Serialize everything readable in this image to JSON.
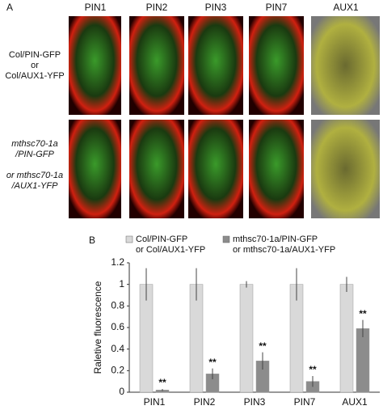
{
  "panel_a": {
    "label": "A",
    "columns": [
      "PIN1",
      "PIN2",
      "PIN3",
      "PIN7",
      "AUX1"
    ],
    "rows": [
      "Col/PIN-GFP\nor\nCol/AUX1-YFP",
      "mthsc70-1a\n/PIN-GFP\n\nor mthsc70-1a\n/AUX1-YFP"
    ]
  },
  "chart_data": {
    "type": "bar",
    "panel_label": "B",
    "ylabel": "Raletive fluorescence",
    "categories": [
      "PIN1",
      "PIN2",
      "PIN3",
      "PIN7",
      "AUX1"
    ],
    "series": [
      {
        "name": "Col/PIN-GFP\nor Col/AUX1-YFP",
        "color": "#d9d9d9",
        "values": [
          1,
          1,
          1,
          1,
          1
        ],
        "errors": [
          0.15,
          0.15,
          0.03,
          0.15,
          0.07
        ]
      },
      {
        "name": "mthsc70-1a/PIN-GFP\nor mthsc70-1a/AUX1-YFP",
        "color": "#8c8c8c",
        "values": [
          0.02,
          0.17,
          0.29,
          0.1,
          0.59
        ],
        "errors": [
          0.01,
          0.05,
          0.08,
          0.05,
          0.08
        ],
        "annotations": [
          "**",
          "**",
          "**",
          "**",
          "**"
        ]
      }
    ],
    "ylim": [
      0,
      1.2
    ],
    "yticks": [
      0,
      0.2,
      0.4,
      0.6,
      0.8,
      1,
      1.2
    ]
  }
}
